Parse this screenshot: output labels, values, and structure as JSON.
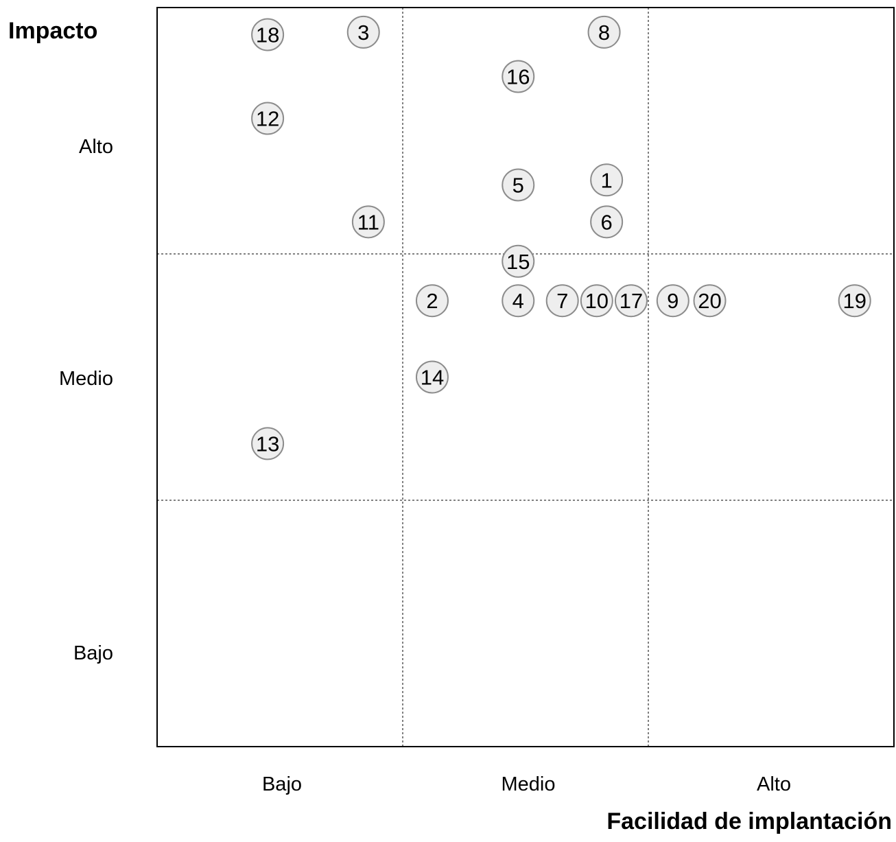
{
  "chart_data": {
    "type": "scatter",
    "title": "",
    "xlabel": "Facilidad de implantación",
    "ylabel": "Impacto",
    "x_tick_labels": [
      "Bajo",
      "Medio",
      "Alto"
    ],
    "y_tick_labels": [
      "Alto",
      "Medio",
      "Bajo"
    ],
    "xlim": [
      0,
      3
    ],
    "ylim": [
      0,
      3
    ],
    "grid": "dashed dividers at 1 and 2 on both axes",
    "legend": "none",
    "points": [
      {
        "label": "1",
        "x": 1.83,
        "y": 2.3
      },
      {
        "label": "2",
        "x": 1.12,
        "y": 1.81
      },
      {
        "label": "3",
        "x": 0.84,
        "y": 2.9
      },
      {
        "label": "4",
        "x": 1.47,
        "y": 1.81
      },
      {
        "label": "5",
        "x": 1.47,
        "y": 2.28
      },
      {
        "label": "6",
        "x": 1.83,
        "y": 2.13
      },
      {
        "label": "7",
        "x": 1.65,
        "y": 1.81
      },
      {
        "label": "8",
        "x": 1.82,
        "y": 2.9
      },
      {
        "label": "9",
        "x": 2.1,
        "y": 1.81
      },
      {
        "label": "10",
        "x": 1.79,
        "y": 1.81
      },
      {
        "label": "11",
        "x": 0.86,
        "y": 2.13
      },
      {
        "label": "12",
        "x": 0.45,
        "y": 2.55
      },
      {
        "label": "13",
        "x": 0.45,
        "y": 1.23
      },
      {
        "label": "14",
        "x": 1.12,
        "y": 1.5
      },
      {
        "label": "15",
        "x": 1.47,
        "y": 1.97
      },
      {
        "label": "16",
        "x": 1.47,
        "y": 2.72
      },
      {
        "label": "17",
        "x": 1.93,
        "y": 1.81
      },
      {
        "label": "18",
        "x": 0.45,
        "y": 2.89
      },
      {
        "label": "19",
        "x": 2.84,
        "y": 1.81
      },
      {
        "label": "20",
        "x": 2.25,
        "y": 1.81
      }
    ],
    "colors": {
      "bubble_fill": "#eeeeee",
      "bubble_stroke": "#8c8c8c",
      "frame": "#000000",
      "divider": "#000000"
    }
  }
}
